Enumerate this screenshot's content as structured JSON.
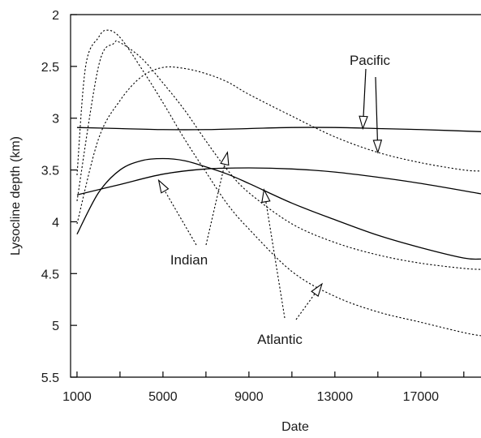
{
  "chart_data": {
    "type": "line",
    "title": "",
    "xlabel": "Date",
    "ylabel": "Lysocline depth (km)",
    "xlim": [
      700,
      19800
    ],
    "ylim": [
      5.5,
      2
    ],
    "y_inverted": true,
    "grid": false,
    "x_ticks": [
      1000,
      5000,
      9000,
      13000,
      17000
    ],
    "x_minor_ticks": [
      1000,
      3000,
      5000,
      7000,
      9000,
      11000,
      13000,
      15000,
      17000,
      19000
    ],
    "y_ticks": [
      2,
      2.5,
      3,
      3.5,
      4,
      4.5,
      5,
      5.5
    ],
    "y_tick_labels": [
      "2",
      "2.5",
      "3",
      "3.5",
      "4",
      "4.5",
      "5",
      "5.5"
    ],
    "series": [
      {
        "style": "solid",
        "group": "Pacific",
        "x": [
          1000,
          3000,
          5000,
          7000,
          9000,
          11000,
          13000,
          15000,
          17000,
          19800
        ],
        "y": [
          3.09,
          3.1,
          3.11,
          3.11,
          3.1,
          3.09,
          3.09,
          3.1,
          3.11,
          3.13
        ]
      },
      {
        "style": "solid",
        "group": "Indian",
        "x": [
          1000,
          2000,
          3000,
          4000,
          5000,
          6000,
          7000,
          8000,
          9000,
          11000,
          13000,
          15000,
          17000,
          19000,
          19800
        ],
        "y": [
          4.12,
          3.72,
          3.5,
          3.41,
          3.39,
          3.41,
          3.47,
          3.54,
          3.63,
          3.82,
          3.98,
          4.13,
          4.25,
          4.35,
          4.36
        ]
      },
      {
        "style": "solid",
        "group": "Atlantic",
        "x": [
          1000,
          3000,
          5000,
          7000,
          9000,
          11000,
          13000,
          15000,
          17000,
          19800
        ],
        "y": [
          3.74,
          3.64,
          3.54,
          3.49,
          3.48,
          3.49,
          3.52,
          3.57,
          3.63,
          3.73
        ]
      },
      {
        "style": "dotted",
        "group": "Pacific",
        "x": [
          1000,
          2000,
          3000,
          4000,
          5000,
          6000,
          7000,
          8000,
          9000,
          11000,
          13000,
          15000,
          17000,
          19000,
          19800
        ],
        "y": [
          4.02,
          3.2,
          2.83,
          2.6,
          2.51,
          2.52,
          2.57,
          2.65,
          2.77,
          2.98,
          3.18,
          3.33,
          3.43,
          3.5,
          3.51
        ]
      },
      {
        "style": "dotted",
        "group": "Pacific",
        "x": [
          1000,
          2000,
          2700,
          3000,
          4000,
          5000,
          6000,
          7000,
          8000,
          9000,
          11000,
          13000,
          15000,
          17000,
          19000,
          19800
        ],
        "y": [
          3.8,
          2.5,
          2.28,
          2.27,
          2.42,
          2.66,
          2.92,
          3.22,
          3.5,
          3.72,
          4.02,
          4.2,
          4.32,
          4.4,
          4.45,
          4.46
        ]
      },
      {
        "style": "dotted",
        "group": "Indian",
        "x": [
          1000,
          1400,
          2000,
          2400,
          3000,
          4000,
          5000,
          6000,
          7000,
          8000,
          9000,
          11000,
          13000,
          15000,
          17000,
          19000,
          19800
        ],
        "y": [
          3.55,
          2.5,
          2.22,
          2.15,
          2.22,
          2.52,
          2.85,
          3.2,
          3.52,
          3.83,
          4.07,
          4.48,
          4.72,
          4.87,
          4.97,
          5.07,
          5.1
        ]
      }
    ],
    "annotations": [
      {
        "text": "Pacific",
        "pointer_style": "solid",
        "points_to": [
          [
            14300,
            3.1
          ],
          [
            15000,
            3.33
          ]
        ]
      },
      {
        "text": "Indian",
        "pointer_style": "dotted",
        "points_to": [
          [
            4800,
            3.6
          ],
          [
            8000,
            3.33
          ]
        ]
      },
      {
        "text": "Atlantic",
        "pointer_style": "dotted",
        "points_to": [
          [
            9700,
            3.69
          ],
          [
            12400,
            4.6
          ]
        ]
      }
    ]
  }
}
